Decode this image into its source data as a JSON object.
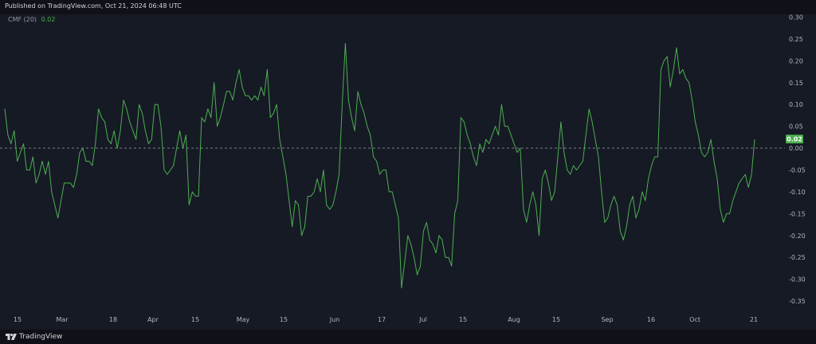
{
  "header": {
    "published": "Published on TradingView.com, Oct 21, 2024 06:48 UTC"
  },
  "indicator": {
    "name": "CMF (20)",
    "value": "0.02",
    "color": "#4caf50"
  },
  "footer": {
    "brand": "TradingView"
  },
  "colors": {
    "background": "#161a25",
    "line": "#4caf50",
    "zero_line": "#787b86",
    "last_value_bg": "#4caf50"
  },
  "chart_data": {
    "type": "line",
    "series": [
      {
        "values": [
          0.09,
          0.03,
          0.01,
          0.04,
          -0.03,
          -0.01,
          0.01,
          -0.05,
          -0.05,
          -0.02,
          -0.08,
          -0.06,
          -0.03,
          -0.06,
          -0.03,
          -0.1,
          -0.13,
          -0.16,
          -0.12,
          -0.08,
          -0.08,
          -0.08,
          -0.09,
          -0.06,
          -0.01,
          0.0,
          -0.03,
          -0.03,
          -0.04,
          0.01,
          0.09,
          0.07,
          0.06,
          0.02,
          0.01,
          0.04,
          0.0,
          0.04,
          0.11,
          0.09,
          0.06,
          0.04,
          0.02,
          0.1,
          0.08,
          0.04,
          0.01,
          0.02,
          0.1,
          0.1,
          0.05,
          -0.05,
          -0.06,
          -0.05,
          -0.04,
          0.0,
          0.04,
          0.0,
          0.03,
          -0.13,
          -0.1,
          -0.11,
          -0.11,
          0.07,
          0.06,
          0.09,
          0.07,
          0.15,
          0.05,
          0.07,
          0.1,
          0.13,
          0.13,
          0.11,
          0.15,
          0.18,
          0.14,
          0.12,
          0.12,
          0.11,
          0.12,
          0.11,
          0.14,
          0.12,
          0.18,
          0.07,
          0.08,
          0.1,
          0.02,
          -0.02,
          -0.06,
          -0.12,
          -0.18,
          -0.12,
          -0.13,
          -0.2,
          -0.18,
          -0.11,
          -0.11,
          -0.1,
          -0.07,
          -0.1,
          -0.05,
          -0.13,
          -0.14,
          -0.13,
          -0.1,
          -0.06,
          0.1,
          0.24,
          0.11,
          0.07,
          0.04,
          0.13,
          0.1,
          0.08,
          0.05,
          0.03,
          -0.02,
          -0.03,
          -0.06,
          -0.05,
          -0.05,
          -0.1,
          -0.1,
          -0.13,
          -0.16,
          -0.32,
          -0.26,
          -0.2,
          -0.22,
          -0.25,
          -0.29,
          -0.27,
          -0.19,
          -0.17,
          -0.21,
          -0.22,
          -0.24,
          -0.2,
          -0.21,
          -0.25,
          -0.25,
          -0.27,
          -0.15,
          -0.12,
          0.07,
          0.06,
          0.03,
          0.01,
          -0.02,
          -0.04,
          0.01,
          -0.01,
          0.02,
          0.01,
          0.03,
          0.05,
          0.03,
          0.1,
          0.05,
          0.05,
          0.03,
          0.01,
          -0.01,
          0.0,
          -0.14,
          -0.17,
          -0.13,
          -0.1,
          -0.13,
          -0.2,
          -0.07,
          -0.05,
          -0.08,
          -0.12,
          -0.1,
          -0.02,
          0.06,
          -0.01,
          -0.05,
          -0.06,
          -0.04,
          -0.05,
          -0.04,
          -0.03,
          0.03,
          0.09,
          0.06,
          0.02,
          -0.02,
          -0.1,
          -0.17,
          -0.16,
          -0.13,
          -0.11,
          -0.13,
          -0.19,
          -0.21,
          -0.18,
          -0.13,
          -0.11,
          -0.16,
          -0.14,
          -0.1,
          -0.12,
          -0.07,
          -0.04,
          -0.02,
          -0.02,
          0.18,
          0.2,
          0.21,
          0.14,
          0.18,
          0.23,
          0.17,
          0.18,
          0.16,
          0.15,
          0.11,
          0.06,
          0.03,
          -0.01,
          -0.02,
          -0.01,
          0.02,
          -0.03,
          -0.07,
          -0.14,
          -0.17,
          -0.15,
          -0.15,
          -0.12,
          -0.1,
          -0.08,
          -0.07,
          -0.06,
          -0.09,
          -0.06,
          0.02
        ]
      }
    ],
    "x_tick_labels": [
      "15",
      "Mar",
      "18",
      "Apr",
      "15",
      "May",
      "15",
      "Jun",
      "17",
      "Jul",
      "15",
      "Aug",
      "15",
      "Sep",
      "16",
      "Oct",
      "21"
    ],
    "y_tick_labels": [
      "0.30",
      "0.25",
      "0.20",
      "0.15",
      "0.10",
      "0.05",
      "0.00",
      "-0.05",
      "-0.10",
      "-0.15",
      "-0.20",
      "-0.25",
      "-0.30",
      "-0.35"
    ],
    "y_ticks": [
      0.3,
      0.25,
      0.2,
      0.15,
      0.1,
      0.05,
      0.0,
      -0.05,
      -0.1,
      -0.15,
      -0.2,
      -0.25,
      -0.3,
      -0.35
    ],
    "ylim": [
      -0.39,
      0.31
    ],
    "zero_line": 0,
    "last_value_label": "0.02",
    "grid": false,
    "legend": "top-left"
  }
}
